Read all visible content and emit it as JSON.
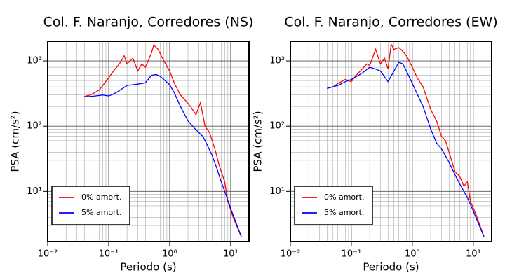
{
  "chart_data": [
    {
      "type": "line",
      "title": "Col. F. Naranjo, Corredores (NS)",
      "xlabel": "Periodo (s)",
      "ylabel": "PSA (cm/s²)",
      "xscale": "log",
      "yscale": "log",
      "grid": true,
      "legend": "lower left",
      "xlim": [
        0.01,
        20
      ],
      "ylim": [
        1.7,
        2000
      ],
      "xticks": [
        {
          "value": 0.01,
          "label": "10⁻²"
        },
        {
          "value": 0.1,
          "label": "10⁻¹"
        },
        {
          "value": 1,
          "label": "10⁰"
        },
        {
          "value": 10,
          "label": "10¹"
        }
      ],
      "yticks": [
        {
          "value": 10,
          "label": "10¹"
        },
        {
          "value": 100,
          "label": "10²"
        },
        {
          "value": 1000,
          "label": "10³"
        }
      ],
      "series": [
        {
          "name": "0% amort.",
          "color": "#ff0000",
          "x": [
            0.04,
            0.05,
            0.06,
            0.07,
            0.08,
            0.1,
            0.12,
            0.15,
            0.18,
            0.2,
            0.25,
            0.3,
            0.35,
            0.4,
            0.5,
            0.55,
            0.65,
            0.8,
            1.0,
            1.2,
            1.5,
            1.8,
            2.2,
            2.7,
            3.2,
            3.8,
            4.5,
            5.5,
            6.5,
            8,
            9,
            11,
            15
          ],
          "values": [
            285,
            300,
            330,
            360,
            420,
            550,
            700,
            900,
            1200,
            900,
            1100,
            700,
            900,
            800,
            1300,
            1750,
            1500,
            1000,
            700,
            450,
            300,
            250,
            200,
            150,
            230,
            100,
            80,
            45,
            25,
            14,
            7,
            4,
            2
          ]
        },
        {
          "name": "5% amort.",
          "color": "#0000ff",
          "x": [
            0.04,
            0.06,
            0.08,
            0.1,
            0.12,
            0.15,
            0.2,
            0.3,
            0.4,
            0.5,
            0.6,
            0.7,
            0.8,
            1.0,
            1.2,
            1.5,
            2.0,
            2.5,
            3.0,
            3.5,
            4,
            5,
            6,
            7,
            8,
            10,
            15
          ],
          "values": [
            280,
            290,
            300,
            290,
            310,
            350,
            420,
            440,
            460,
            600,
            620,
            580,
            520,
            430,
            320,
            200,
            120,
            95,
            80,
            70,
            55,
            35,
            22,
            14,
            10,
            5.5,
            2
          ]
        }
      ]
    },
    {
      "type": "line",
      "title": "Col. F. Naranjo, Corredores (EW)",
      "xlabel": "Periodo (s)",
      "ylabel": "PSA (cm/s²)",
      "xscale": "log",
      "yscale": "log",
      "grid": true,
      "legend": "lower left",
      "xlim": [
        0.01,
        20
      ],
      "ylim": [
        1.7,
        2000
      ],
      "xticks": [
        {
          "value": 0.01,
          "label": "10⁻²"
        },
        {
          "value": 0.1,
          "label": "10⁻¹"
        },
        {
          "value": 1,
          "label": "10⁰"
        },
        {
          "value": 10,
          "label": "10¹"
        }
      ],
      "yticks": [
        {
          "value": 10,
          "label": "10¹"
        },
        {
          "value": 100,
          "label": "10²"
        },
        {
          "value": 1000,
          "label": "10³"
        }
      ],
      "series": [
        {
          "name": "0% amort.",
          "color": "#ff0000",
          "x": [
            0.04,
            0.05,
            0.06,
            0.08,
            0.1,
            0.12,
            0.15,
            0.18,
            0.2,
            0.25,
            0.3,
            0.35,
            0.4,
            0.45,
            0.5,
            0.6,
            0.7,
            0.8,
            1.0,
            1.2,
            1.5,
            2.0,
            2.5,
            3.0,
            3.5,
            4,
            5,
            6,
            7,
            8,
            9,
            11,
            15
          ],
          "values": [
            380,
            400,
            450,
            520,
            480,
            600,
            750,
            900,
            850,
            1500,
            900,
            1100,
            750,
            1800,
            1500,
            1600,
            1400,
            1200,
            800,
            550,
            400,
            180,
            120,
            70,
            60,
            40,
            20,
            17,
            12,
            14,
            7,
            4.5,
            2
          ]
        },
        {
          "name": "5% amort.",
          "color": "#0000ff",
          "x": [
            0.04,
            0.06,
            0.08,
            0.1,
            0.15,
            0.2,
            0.25,
            0.3,
            0.4,
            0.5,
            0.6,
            0.7,
            0.8,
            1.0,
            1.5,
            2.0,
            2.5,
            3.0,
            4,
            5,
            6,
            8,
            10,
            15
          ],
          "values": [
            380,
            420,
            480,
            520,
            650,
            800,
            750,
            700,
            480,
            700,
            950,
            900,
            700,
            450,
            200,
            90,
            55,
            45,
            28,
            18,
            13,
            8,
            5,
            2
          ]
        }
      ]
    }
  ]
}
